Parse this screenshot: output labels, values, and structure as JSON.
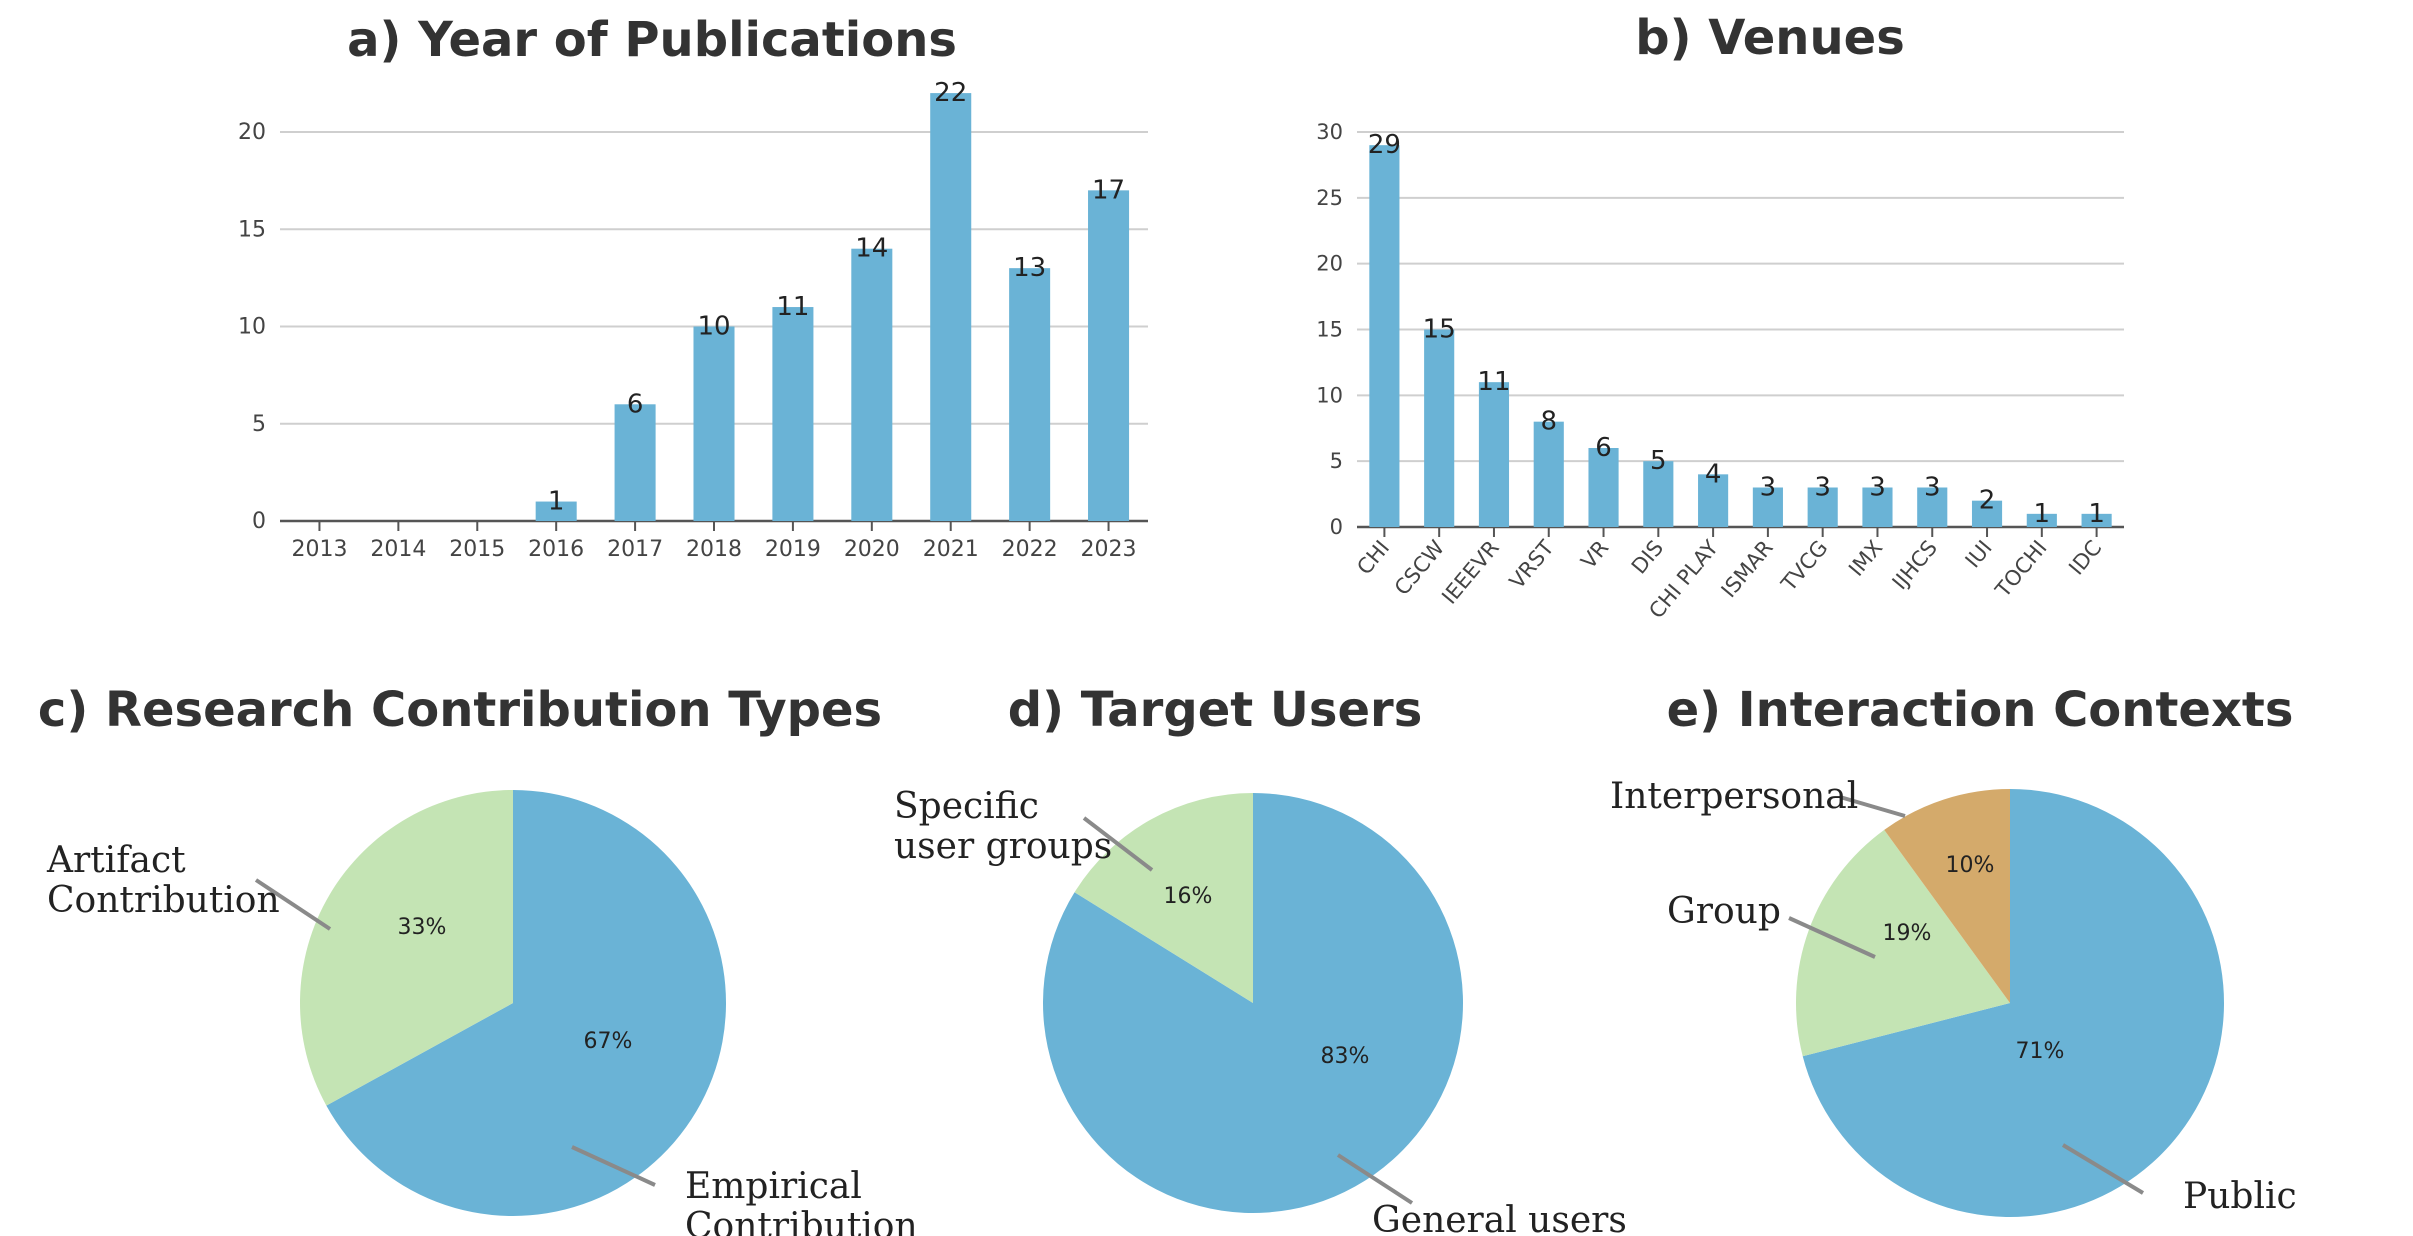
{
  "chart_data": [
    {
      "id": "a",
      "type": "bar",
      "title": "a) Year of Publications",
      "categories": [
        "2013",
        "2014",
        "2015",
        "2016",
        "2017",
        "2018",
        "2019",
        "2020",
        "2021",
        "2022",
        "2023"
      ],
      "values": [
        0,
        0,
        0,
        1,
        6,
        10,
        11,
        14,
        22,
        13,
        17
      ],
      "data_labels": [
        "",
        "",
        "",
        "1",
        "6",
        "10",
        "11",
        "14",
        "22",
        "13",
        "17"
      ],
      "ylim": [
        0,
        20
      ],
      "yticks": [
        0,
        5,
        10,
        15,
        20
      ],
      "xlabel": "",
      "ylabel": "",
      "grid": true,
      "color": "#6ab3d6"
    },
    {
      "id": "b",
      "type": "bar",
      "title": "b) Venues",
      "categories": [
        "CHI",
        "CSCW",
        "IEEEVR",
        "VRST",
        "VR",
        "DIS",
        "CHI PLAY",
        "ISMAR",
        "TVCG",
        "IMX",
        "IJHCS",
        "IUI",
        "TOCHI",
        "IDC"
      ],
      "values": [
        29,
        15,
        11,
        8,
        6,
        5,
        4,
        3,
        3,
        3,
        3,
        2,
        1,
        1
      ],
      "data_labels": [
        "29",
        "15",
        "11",
        "8",
        "6",
        "5",
        "4",
        "3",
        "3",
        "3",
        "3",
        "2",
        "1",
        "1"
      ],
      "ylim": [
        0,
        30
      ],
      "yticks": [
        0,
        5,
        10,
        15,
        20,
        25,
        30
      ],
      "xlabel": "",
      "ylabel": "",
      "grid": true,
      "color": "#6ab3d6"
    },
    {
      "id": "c",
      "type": "pie",
      "title": "c) Research Contribution Types",
      "slices": [
        {
          "label": "Empirical Contribution",
          "label_lines": [
            "Empirical",
            "Contribution"
          ],
          "value": 67,
          "pct": "67%",
          "color": "#6ab3d6"
        },
        {
          "label": "Artifact Contribution",
          "label_lines": [
            "Artifact",
            "Contribution"
          ],
          "value": 33,
          "pct": "33%",
          "color": "#c4e4b4"
        }
      ]
    },
    {
      "id": "d",
      "type": "pie",
      "title": "d) Target Users",
      "slices": [
        {
          "label": "General users",
          "label_lines": [
            "General users"
          ],
          "value": 83,
          "pct": "83%",
          "color": "#6ab3d6"
        },
        {
          "label": "Specific user groups",
          "label_lines": [
            "Specific",
            "user groups"
          ],
          "value": 16,
          "pct": "16%",
          "color": "#c4e4b4"
        }
      ]
    },
    {
      "id": "e",
      "type": "pie",
      "title": "e) Interaction Contexts",
      "slices": [
        {
          "label": "Public",
          "label_lines": [
            "Public"
          ],
          "value": 71,
          "pct": "71%",
          "color": "#6ab3d6"
        },
        {
          "label": "Group",
          "label_lines": [
            "Group"
          ],
          "value": 19,
          "pct": "19%",
          "color": "#c4e4b4"
        },
        {
          "label": "Interpersonal",
          "label_lines": [
            "Interpersonal"
          ],
          "value": 10,
          "pct": "10%",
          "color": "#d4aa6b"
        }
      ]
    }
  ]
}
